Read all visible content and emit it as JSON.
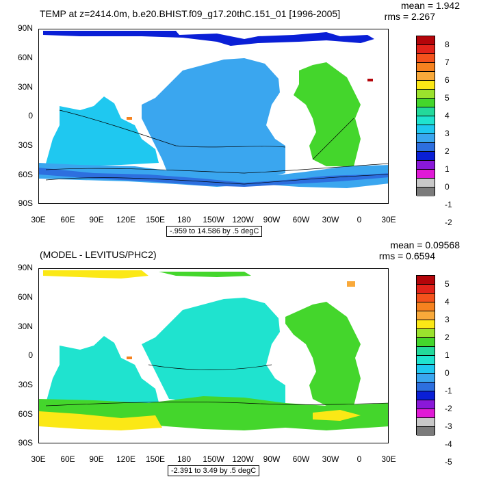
{
  "top": {
    "title": "TEMP at z=2414.0m, b.e20.BHIST.f09_g17.20thC.151_01 [1996-2005]",
    "mean_label": "mean = 1.942",
    "rms_label": "rms = 2.267",
    "range_label": "-.959 to 14.586 by .5 degC",
    "colorbar_labels": [
      "8",
      "7",
      "6",
      "5",
      "4",
      "3",
      "2",
      "1",
      "0",
      "-1",
      "-2"
    ],
    "colorbar_colors": [
      "#b4050a",
      "#e2231a",
      "#f4521c",
      "#f6821f",
      "#f9a93a",
      "#fbe816",
      "#9be22d",
      "#44d62c",
      "#23d99b",
      "#1fe3cf",
      "#1fc8f0",
      "#3aa6ef",
      "#2d6fdf",
      "#0a1fd6",
      "#8a18d9",
      "#e01ad6",
      "#c8c8c8",
      "#7b7b7b"
    ]
  },
  "bottom": {
    "title": "(MODEL - LEVITUS/PHC2)",
    "mean_label": "mean = 0.09568",
    "rms_label": "rms = 0.6594",
    "range_label": "-2.391 to 3.49 by .5 degC",
    "colorbar_labels": [
      "5",
      "4",
      "3",
      "2",
      "1",
      "0",
      "-1",
      "-2",
      "-3",
      "-4",
      "-5"
    ],
    "colorbar_colors": [
      "#b4050a",
      "#e2231a",
      "#f4521c",
      "#f6821f",
      "#f9a93a",
      "#fbe816",
      "#9be22d",
      "#44d62c",
      "#23d99b",
      "#1fe3cf",
      "#1fc8f0",
      "#3aa6ef",
      "#2d6fdf",
      "#0a1fd6",
      "#8a18d9",
      "#e01ad6",
      "#c8c8c8",
      "#7b7b7b"
    ]
  },
  "axes": {
    "lat_labels": [
      "90N",
      "60N",
      "30N",
      "0",
      "30S",
      "60S",
      "90S"
    ],
    "lon_labels": [
      "30E",
      "60E",
      "90E",
      "120E",
      "150E",
      "180",
      "150W",
      "120W",
      "90W",
      "60W",
      "30W",
      "0",
      "30E"
    ]
  },
  "field_colors": {
    "pacific_top": "#3aa6ef",
    "atlantic_top": "#44d62c",
    "southern_top": "#3aa6ef",
    "indian_top": "#1fc8f0",
    "arctic_top": "#0a1fd6",
    "deep_south_top": "#2d6fdf",
    "pacific_bottom": "#1fe3cf",
    "atlantic_bottom": "#44d62c",
    "southern_bottom": "#44d62c",
    "indian_bottom": "#1fe3cf",
    "arctic_bottom": "#fbe816",
    "warm_bottom": "#fbe816",
    "med_top": "#b4050a"
  }
}
